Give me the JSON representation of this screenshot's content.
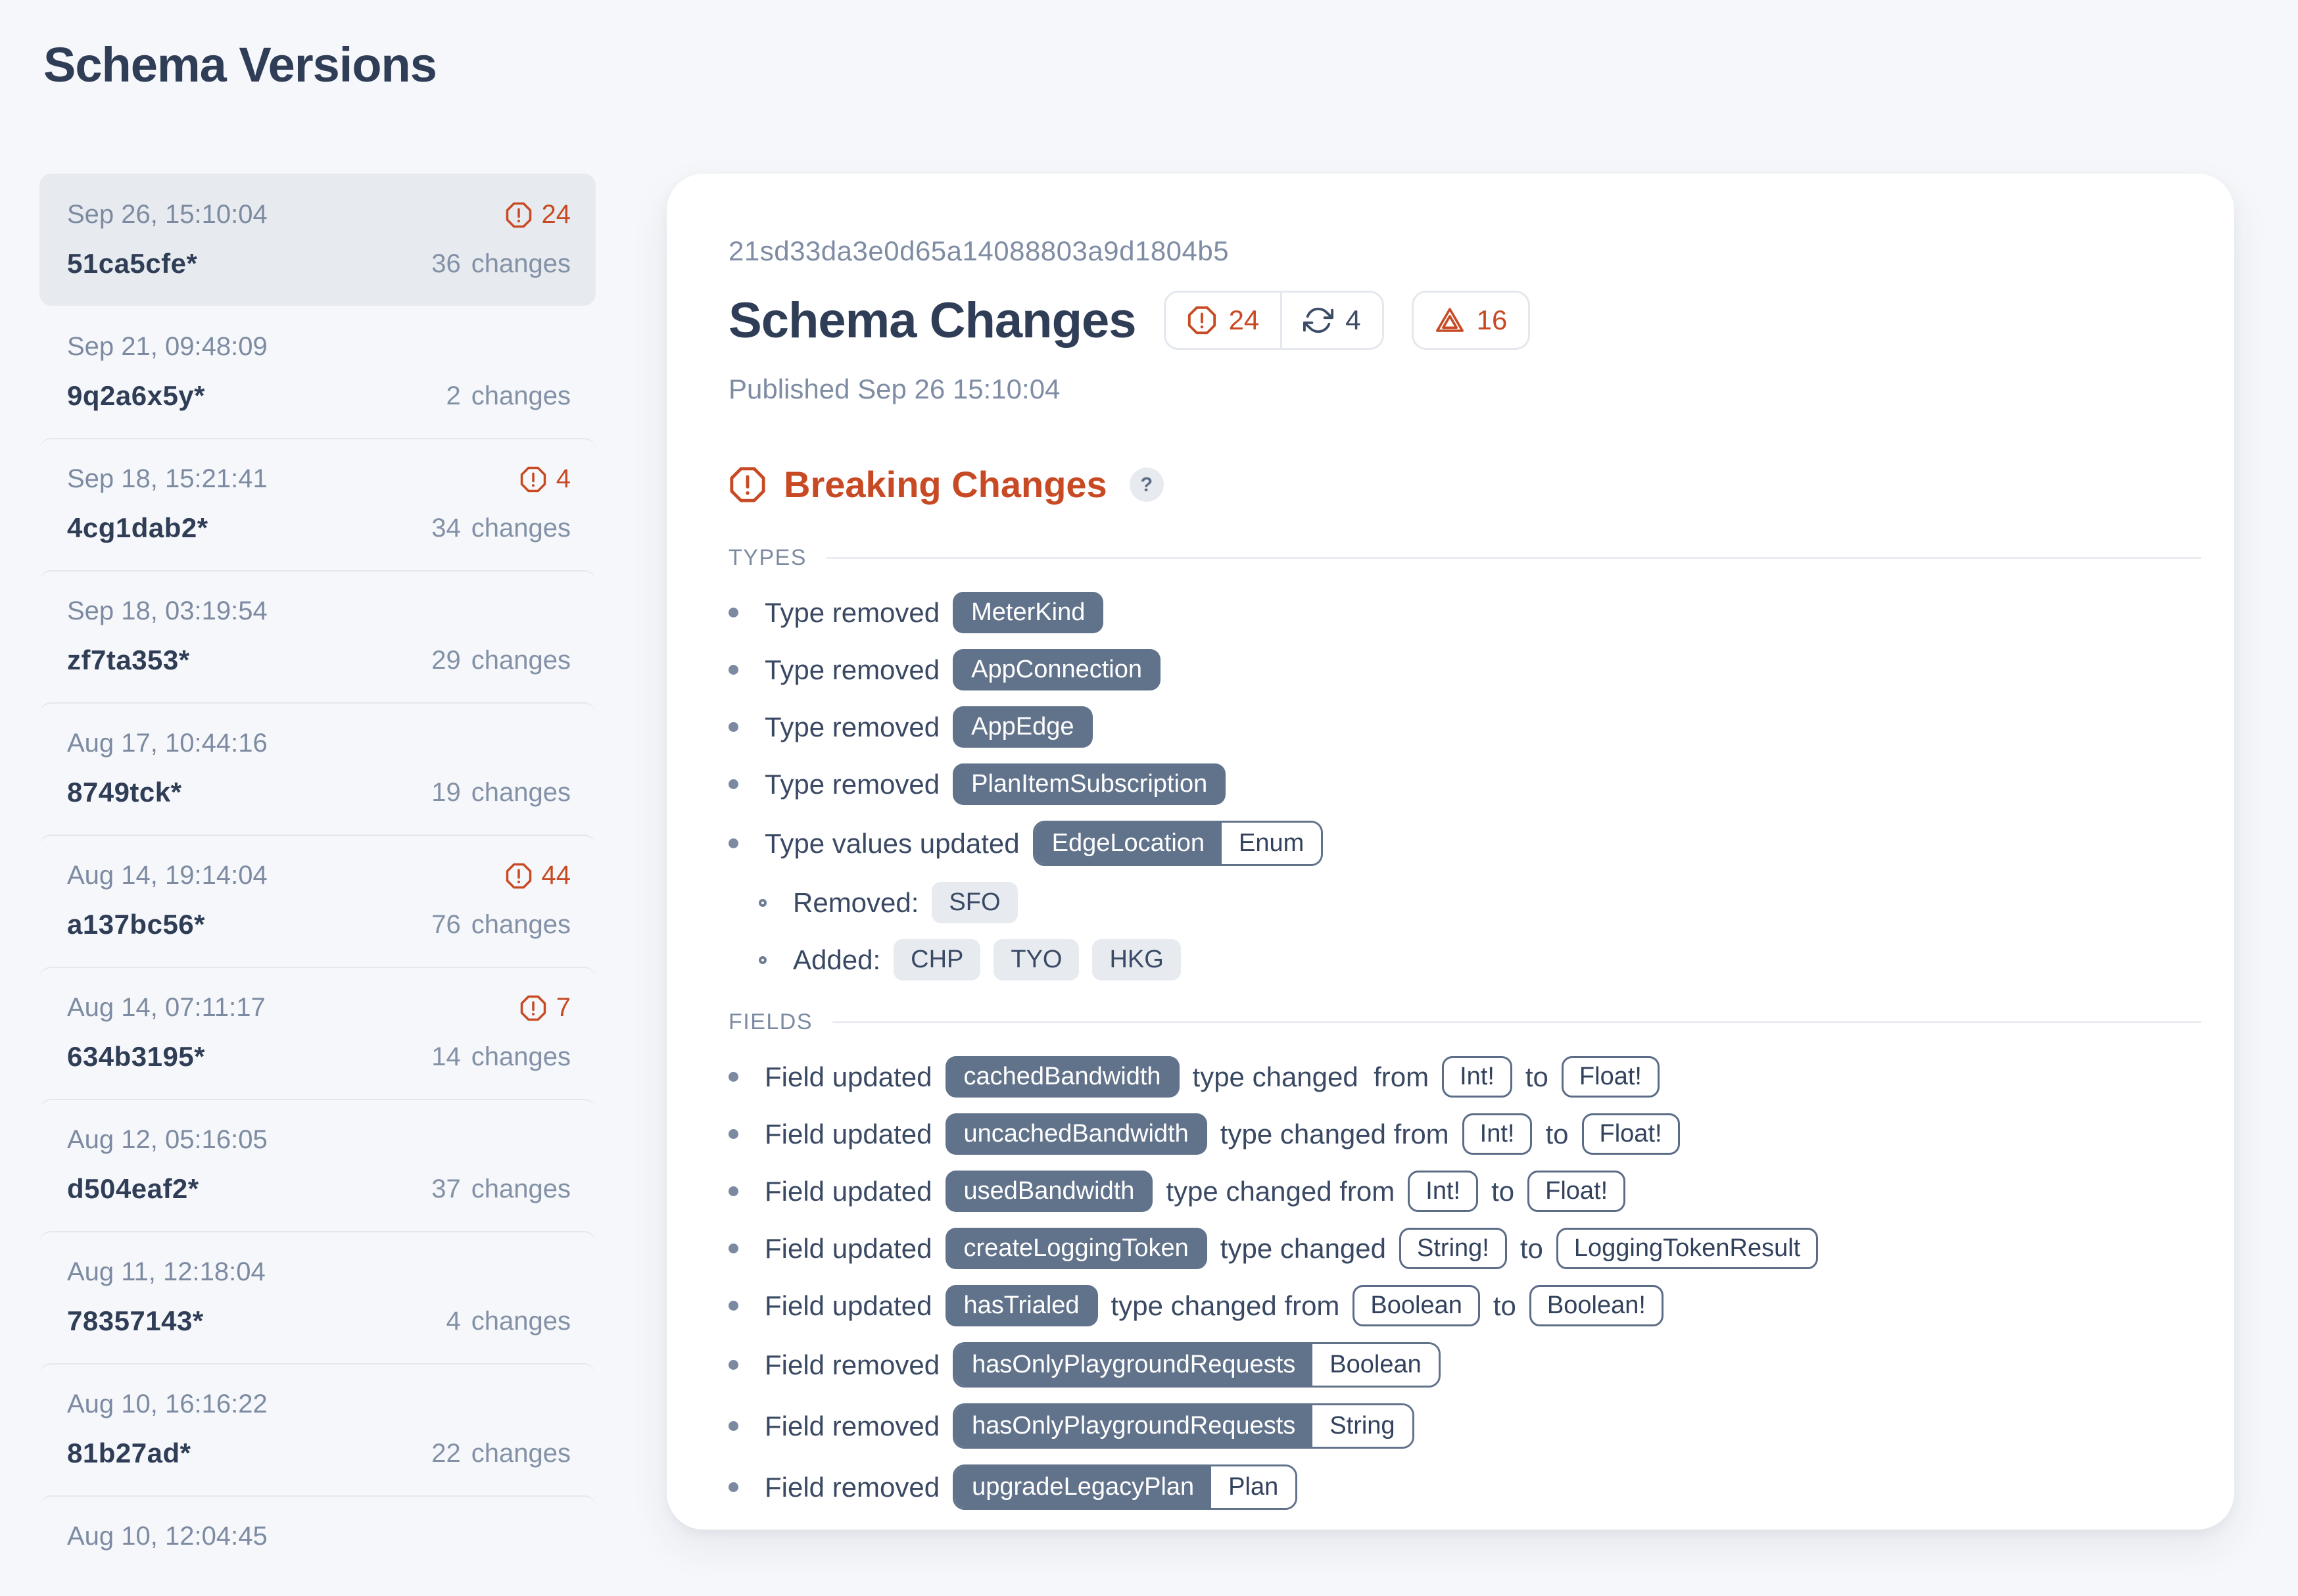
{
  "page": {
    "title": "Schema Versions"
  },
  "sidebar": {
    "changes_label": "changes",
    "versions": [
      {
        "date": "Sep 26, 15:10:04",
        "hash": "51ca5cfe*",
        "breaking": "24",
        "count": "36",
        "selected": true
      },
      {
        "date": "Sep 21, 09:48:09",
        "hash": "9q2a6x5y*",
        "breaking": null,
        "count": "2",
        "selected": false
      },
      {
        "date": "Sep 18, 15:21:41",
        "hash": "4cg1dab2*",
        "breaking": "4",
        "count": "34",
        "selected": false
      },
      {
        "date": "Sep 18, 03:19:54",
        "hash": "zf7ta353*",
        "breaking": null,
        "count": "29",
        "selected": false
      },
      {
        "date": "Aug 17, 10:44:16",
        "hash": "8749tck*",
        "breaking": null,
        "count": "19",
        "selected": false
      },
      {
        "date": "Aug 14, 19:14:04",
        "hash": "a137bc56*",
        "breaking": "44",
        "count": "76",
        "selected": false
      },
      {
        "date": "Aug 14, 07:11:17",
        "hash": "634b3195*",
        "breaking": "7",
        "count": "14",
        "selected": false
      },
      {
        "date": "Aug 12, 05:16:05",
        "hash": "d504eaf2*",
        "breaking": null,
        "count": "37",
        "selected": false
      },
      {
        "date": "Aug 11, 12:18:04",
        "hash": "78357143*",
        "breaking": null,
        "count": "4",
        "selected": false
      },
      {
        "date": "Aug 10, 16:16:22",
        "hash": "81b27ad*",
        "breaking": null,
        "count": "22",
        "selected": false
      },
      {
        "date": "Aug 10, 12:04:45",
        "hash": "",
        "breaking": null,
        "count": "",
        "selected": false
      }
    ]
  },
  "main": {
    "hash": "21sd33da3e0d65a14088803a9d1804b5",
    "title": "Schema Changes",
    "badges": {
      "breaking": "24",
      "updates": "4",
      "warnings": "16"
    },
    "published": "Published Sep 26 15:10:04",
    "breaking_section": {
      "title": "Breaking Changes",
      "help": "?"
    },
    "groups": [
      {
        "label": "TYPES",
        "items": [
          {
            "b": "dot",
            "indent": 0,
            "seg": [
              {
                "k": "text",
                "v": "Type removed"
              },
              {
                "k": "filled",
                "v": "MeterKind"
              }
            ]
          },
          {
            "b": "dot",
            "indent": 0,
            "seg": [
              {
                "k": "text",
                "v": "Type removed"
              },
              {
                "k": "filled",
                "v": "AppConnection"
              }
            ]
          },
          {
            "b": "dot",
            "indent": 0,
            "seg": [
              {
                "k": "text",
                "v": "Type removed"
              },
              {
                "k": "filled",
                "v": "AppEdge"
              }
            ]
          },
          {
            "b": "dot",
            "indent": 0,
            "seg": [
              {
                "k": "text",
                "v": "Type removed"
              },
              {
                "k": "filled",
                "v": "PlanItemSubscription"
              }
            ]
          },
          {
            "b": "dot",
            "indent": 0,
            "seg": [
              {
                "k": "text",
                "v": "Type values updated"
              },
              {
                "k": "combo",
                "l": "EdgeLocation",
                "r": "Enum"
              }
            ]
          },
          {
            "b": "ring",
            "indent": 1,
            "seg": [
              {
                "k": "text",
                "v": "Removed:"
              },
              {
                "k": "light",
                "v": "SFO"
              }
            ]
          },
          {
            "b": "ring",
            "indent": 1,
            "seg": [
              {
                "k": "text",
                "v": "Added:"
              },
              {
                "k": "light",
                "v": "CHP"
              },
              {
                "k": "light",
                "v": "TYO"
              },
              {
                "k": "light",
                "v": "HKG"
              }
            ]
          }
        ]
      },
      {
        "label": "FIELDS",
        "items": [
          {
            "b": "dot",
            "indent": 0,
            "seg": [
              {
                "k": "text",
                "v": "Field updated"
              },
              {
                "k": "filled",
                "v": "cachedBandwidth"
              },
              {
                "k": "text",
                "v": "type changed  from"
              },
              {
                "k": "outline",
                "v": "Int!"
              },
              {
                "k": "text",
                "v": "to"
              },
              {
                "k": "outline",
                "v": "Float!"
              }
            ]
          },
          {
            "b": "dot",
            "indent": 0,
            "seg": [
              {
                "k": "text",
                "v": "Field updated"
              },
              {
                "k": "filled",
                "v": "uncachedBandwidth"
              },
              {
                "k": "text",
                "v": "type changed from"
              },
              {
                "k": "outline",
                "v": "Int!"
              },
              {
                "k": "text",
                "v": "to"
              },
              {
                "k": "outline",
                "v": "Float!"
              }
            ]
          },
          {
            "b": "dot",
            "indent": 0,
            "seg": [
              {
                "k": "text",
                "v": "Field updated"
              },
              {
                "k": "filled",
                "v": "usedBandwidth"
              },
              {
                "k": "text",
                "v": "type changed from"
              },
              {
                "k": "outline",
                "v": "Int!"
              },
              {
                "k": "text",
                "v": "to"
              },
              {
                "k": "outline",
                "v": "Float!"
              }
            ]
          },
          {
            "b": "dot",
            "indent": 0,
            "seg": [
              {
                "k": "text",
                "v": "Field updated"
              },
              {
                "k": "filled",
                "v": "createLoggingToken"
              },
              {
                "k": "text",
                "v": "type changed"
              },
              {
                "k": "outline",
                "v": "String!"
              },
              {
                "k": "text",
                "v": "to"
              },
              {
                "k": "outline",
                "v": "LoggingTokenResult"
              }
            ]
          },
          {
            "b": "dot",
            "indent": 0,
            "seg": [
              {
                "k": "text",
                "v": "Field updated"
              },
              {
                "k": "filled",
                "v": "hasTrialed"
              },
              {
                "k": "text",
                "v": "type changed from"
              },
              {
                "k": "outline",
                "v": "Boolean"
              },
              {
                "k": "text",
                "v": "to"
              },
              {
                "k": "outline",
                "v": "Boolean!"
              }
            ]
          },
          {
            "b": "dot",
            "indent": 0,
            "seg": [
              {
                "k": "text",
                "v": "Field removed"
              },
              {
                "k": "combo",
                "l": "hasOnlyPlaygroundRequests",
                "r": "Boolean"
              }
            ]
          },
          {
            "b": "dot",
            "indent": 0,
            "seg": [
              {
                "k": "text",
                "v": "Field removed"
              },
              {
                "k": "combo",
                "l": "hasOnlyPlaygroundRequests",
                "r": "String"
              }
            ]
          },
          {
            "b": "dot",
            "indent": 0,
            "seg": [
              {
                "k": "text",
                "v": "Field removed"
              },
              {
                "k": "combo",
                "l": "upgradeLegacyPlan",
                "r": "Plan"
              }
            ]
          }
        ]
      }
    ]
  },
  "colors": {
    "accent_red": "#c84a24",
    "badge_slate": "#61728b",
    "navy_text": "#2f3d56",
    "muted_text": "#7d8ba2",
    "selected_bg": "#e7eaee",
    "page_bg": "#f5f7fa",
    "card_bg": "#ffffff"
  }
}
